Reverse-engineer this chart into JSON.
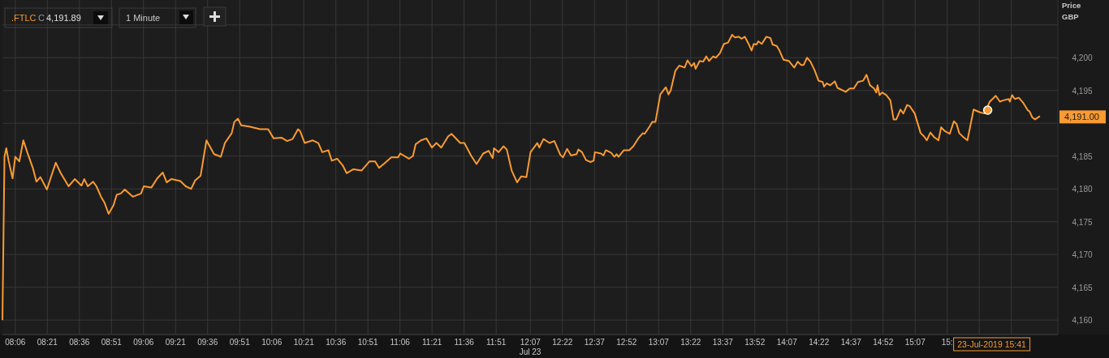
{
  "chart_data": {
    "type": "line",
    "ylabel": "Price GBP",
    "grid": true,
    "legend": "top left",
    "xlim": [
      8.0,
      16.23
    ],
    "ylim": [
      4157.8,
      4208.8
    ],
    "xticks": [
      {
        "value": 8.1,
        "label": "08:06"
      },
      {
        "value": 8.35,
        "label": "08:21"
      },
      {
        "value": 8.6,
        "label": "08:36"
      },
      {
        "value": 8.85,
        "label": "08:51"
      },
      {
        "value": 9.1,
        "label": "09:06"
      },
      {
        "value": 9.35,
        "label": "09:21"
      },
      {
        "value": 9.6,
        "label": "09:36"
      },
      {
        "value": 9.85,
        "label": "09:51"
      },
      {
        "value": 10.1,
        "label": "10:06"
      },
      {
        "value": 10.35,
        "label": "10:21"
      },
      {
        "value": 10.6,
        "label": "10:36"
      },
      {
        "value": 10.85,
        "label": "10:51"
      },
      {
        "value": 11.1,
        "label": "11:06"
      },
      {
        "value": 11.35,
        "label": "11:21"
      },
      {
        "value": 11.6,
        "label": "11:36"
      },
      {
        "value": 11.85,
        "label": "11:51"
      },
      {
        "value": 12.117,
        "label": "12:07"
      },
      {
        "value": 12.367,
        "label": "12:22"
      },
      {
        "value": 12.617,
        "label": "12:37"
      },
      {
        "value": 12.867,
        "label": "12:52"
      },
      {
        "value": 13.117,
        "label": "13:07"
      },
      {
        "value": 13.367,
        "label": "13:22"
      },
      {
        "value": 13.617,
        "label": "13:37"
      },
      {
        "value": 13.867,
        "label": "13:52"
      },
      {
        "value": 14.117,
        "label": "14:07"
      },
      {
        "value": 14.367,
        "label": "14:22"
      },
      {
        "value": 14.617,
        "label": "14:37"
      },
      {
        "value": 14.867,
        "label": "14:52"
      },
      {
        "value": 15.117,
        "label": "15:07"
      },
      {
        "value": 15.367,
        "label": "15:"
      },
      {
        "value": 15.617,
        "label": null
      },
      {
        "value": 15.867,
        "label": null
      }
    ],
    "yticks": [
      {
        "value": 4160,
        "label": "4,160"
      },
      {
        "value": 4165,
        "label": "4,165"
      },
      {
        "value": 4170,
        "label": "4,170"
      },
      {
        "value": 4175,
        "label": "4,175"
      },
      {
        "value": 4180,
        "label": "4,180"
      },
      {
        "value": 4185,
        "label": "4,185"
      },
      {
        "value": 4190,
        "label": null
      },
      {
        "value": 4195,
        "label": "4,195"
      },
      {
        "value": 4200,
        "label": "4,200"
      },
      {
        "value": 4205,
        "label": null
      }
    ],
    "annotations": [
      "C",
      "4,191.89",
      "1 Minute",
      "Jul 23",
      "23-Jul-2019 15:41",
      "4,191.00"
    ],
    "series": [
      {
        "name": ".FTLC",
        "color": "#f99b32",
        "x": [
          8.0,
          8.016,
          8.03,
          8.048,
          8.079,
          8.1,
          8.132,
          8.163,
          8.195,
          8.237,
          8.265,
          8.296,
          8.347,
          8.375,
          8.416,
          8.452,
          8.516,
          8.564,
          8.617,
          8.638,
          8.666,
          8.707,
          8.733,
          8.769,
          8.796,
          8.828,
          8.866,
          8.891,
          8.923,
          8.954,
          9.018,
          9.081,
          9.102,
          9.161,
          9.207,
          9.25,
          9.281,
          9.317,
          9.387,
          9.429,
          9.471,
          9.503,
          9.545,
          9.591,
          9.65,
          9.703,
          9.735,
          9.788,
          9.808,
          9.836,
          9.862,
          9.925,
          10.009,
          10.072,
          10.115,
          10.178,
          10.22,
          10.262,
          10.305,
          10.321,
          10.357,
          10.42,
          10.463,
          10.494,
          10.542,
          10.568,
          10.61,
          10.653,
          10.684,
          10.737,
          10.8,
          10.863,
          10.906,
          10.937,
          10.979,
          11.032,
          11.085,
          11.102,
          11.169,
          11.201,
          11.222,
          11.264,
          11.306,
          11.349,
          11.384,
          11.422,
          11.475,
          11.502,
          11.57,
          11.602,
          11.654,
          11.697,
          11.749,
          11.792,
          11.823,
          11.833,
          11.869,
          11.907,
          11.933,
          11.971,
          12.013,
          12.045,
          12.086,
          12.118,
          12.171,
          12.186,
          12.219,
          12.266,
          12.304,
          12.35,
          12.371,
          12.403,
          12.434,
          12.477,
          12.491,
          12.519,
          12.551,
          12.586,
          12.61,
          12.62,
          12.667,
          12.687,
          12.705,
          12.747,
          12.772,
          12.789,
          12.804,
          12.846,
          12.888,
          12.92,
          12.962,
          12.994,
          13.008,
          13.046,
          13.067,
          13.092,
          13.13,
          13.173,
          13.194,
          13.211,
          13.247,
          13.278,
          13.32,
          13.342,
          13.373,
          13.394,
          13.405,
          13.437,
          13.464,
          13.489,
          13.51,
          13.542,
          13.563,
          13.595,
          13.626,
          13.658,
          13.69,
          13.711,
          13.742,
          13.763,
          13.789,
          13.816,
          13.842,
          13.858,
          13.88,
          13.894,
          13.921,
          13.957,
          13.989,
          14.006,
          14.038,
          14.059,
          14.09,
          14.133,
          14.174,
          14.202,
          14.228,
          14.248,
          14.274,
          14.301,
          14.333,
          14.364,
          14.396,
          14.407,
          14.428,
          14.455,
          14.491,
          14.512,
          14.576,
          14.607,
          14.639,
          14.671,
          14.712,
          14.738,
          14.765,
          14.797,
          14.814,
          14.824,
          14.839,
          14.86,
          14.892,
          14.924,
          14.949,
          14.97,
          15.003,
          15.025,
          15.054,
          15.076,
          15.114,
          15.16,
          15.187,
          15.208,
          15.236,
          15.265,
          15.299,
          15.32,
          15.349,
          15.387,
          15.419,
          15.44,
          15.461,
          15.493,
          15.525,
          15.573,
          15.62,
          15.658,
          15.699,
          15.746,
          15.778,
          15.805,
          15.847,
          15.856,
          15.873,
          15.894,
          15.925,
          15.957,
          15.995,
          16.009,
          16.031,
          16.052,
          16.09
        ],
        "values": [
          4160.0,
          4184.9,
          4186.2,
          4184.3,
          4181.6,
          4184.9,
          4184.2,
          4187.4,
          4185.5,
          4183.2,
          4181.1,
          4181.8,
          4179.9,
          4181.6,
          4184.0,
          4182.5,
          4180.4,
          4181.5,
          4180.5,
          4181.5,
          4180.4,
          4181.1,
          4180.4,
          4178.8,
          4177.9,
          4176.2,
          4177.5,
          4179.1,
          4179.3,
          4179.9,
          4178.8,
          4179.3,
          4180.4,
          4180.2,
          4181.6,
          4182.5,
          4181.0,
          4181.5,
          4181.2,
          4180.4,
          4180.0,
          4181.3,
          4182.0,
          4187.4,
          4185.3,
          4184.9,
          4187.0,
          4188.5,
          4190.2,
          4190.7,
          4189.7,
          4189.5,
          4189.1,
          4189.1,
          4187.7,
          4187.8,
          4187.3,
          4187.6,
          4189.1,
          4188.8,
          4187.0,
          4187.4,
          4187.0,
          4185.6,
          4185.9,
          4184.3,
          4184.6,
          4183.6,
          4182.4,
          4183.0,
          4182.8,
          4184.2,
          4184.2,
          4183.2,
          4183.9,
          4184.8,
          4184.8,
          4185.4,
          4184.6,
          4185.0,
          4186.8,
          4187.4,
          4187.7,
          4186.3,
          4187.0,
          4186.3,
          4188.0,
          4188.4,
          4187.0,
          4187.0,
          4185.1,
          4183.8,
          4185.4,
          4185.8,
          4184.7,
          4186.2,
          4185.6,
          4186.5,
          4186.0,
          4182.8,
          4181.0,
          4181.9,
          4181.8,
          4185.6,
          4187.0,
          4186.3,
          4187.6,
          4187.0,
          4187.3,
          4185.2,
          4184.8,
          4186.1,
          4185.1,
          4185.3,
          4186.0,
          4185.6,
          4184.4,
          4184.1,
          4184.3,
          4185.6,
          4185.4,
          4185.1,
          4185.9,
          4185.5,
          4184.9,
          4185.3,
          4184.9,
          4185.9,
          4185.9,
          4186.5,
          4187.8,
          4188.5,
          4188.4,
          4189.5,
          4190.2,
          4190.2,
          4194.4,
          4195.5,
          4194.4,
          4195.0,
          4198.0,
          4198.8,
          4198.5,
          4199.6,
          4198.7,
          4199.2,
          4198.3,
          4199.5,
          4199.4,
          4200.2,
          4199.5,
          4200.2,
          4200.0,
          4200.7,
          4202.1,
          4202.3,
          4203.5,
          4203.1,
          4203.2,
          4202.9,
          4203.2,
          4202.2,
          4201.1,
          4202.1,
          4202.0,
          4202.5,
          4202.1,
          4203.2,
          4203.0,
          4202.0,
          4201.8,
          4201.1,
          4199.7,
          4199.5,
          4198.5,
          4199.4,
          4198.9,
          4198.9,
          4200.0,
          4199.4,
          4198.1,
          4196.5,
          4196.3,
          4195.6,
          4196.1,
          4195.8,
          4196.4,
          4195.4,
          4194.8,
          4195.3,
          4195.3,
          4196.3,
          4196.5,
          4197.4,
          4195.8,
          4195.3,
          4194.7,
          4195.8,
          4194.3,
          4194.7,
          4194.3,
          4193.5,
          4190.6,
          4190.6,
          4192.1,
          4191.5,
          4192.8,
          4192.6,
          4191.5,
          4188.5,
          4188.0,
          4187.4,
          4188.6,
          4187.9,
          4187.4,
          4189.4,
          4188.8,
          4188.4,
          4190.3,
          4189.9,
          4188.5,
          4187.9,
          4187.4,
          4192.1,
          4191.7,
          4191.5,
          4193.3,
          4194.2,
          4193.3,
          4193.5,
          4193.7,
          4193.3,
          4194.3,
          4193.7,
          4193.9,
          4193.2,
          4192.0,
          4191.8,
          4190.9,
          4190.6,
          4191.1
        ]
      },
      {
        "type": "scatter",
        "color": "#f99b32",
        "marker": "circle",
        "x": [
          15.683
        ],
        "values": [
          4192.0
        ]
      }
    ]
  }
}
